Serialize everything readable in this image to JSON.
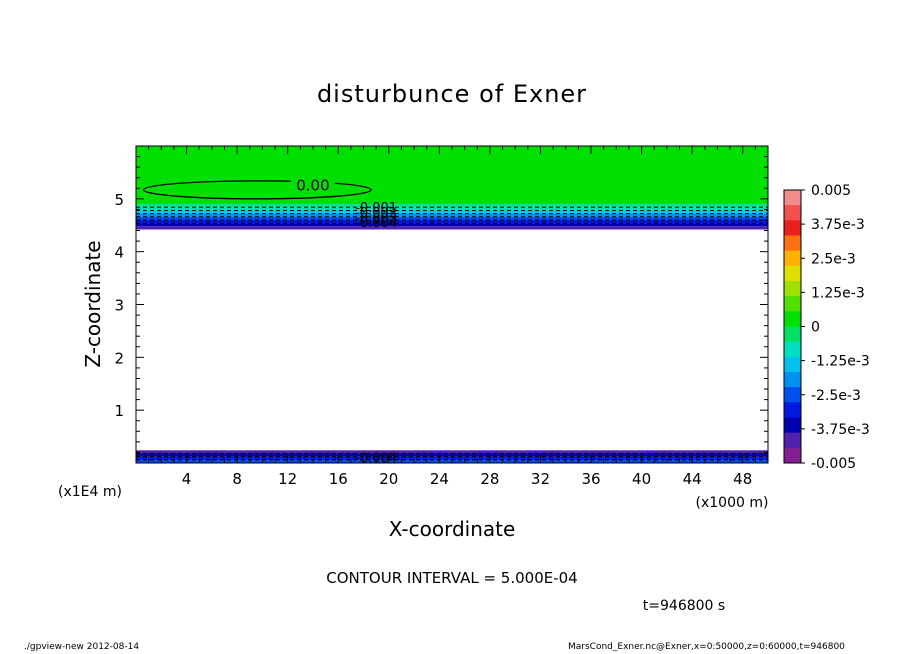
{
  "chart_data": {
    "type": "contour",
    "title": "disturbunce of Exner",
    "xlabel": "X-coordinate",
    "ylabel": "Z-coordinate",
    "x_unit": "(x1000 m)",
    "y_unit": "(x1E4 m)",
    "xlim": [
      0,
      50
    ],
    "ylim": [
      0,
      6
    ],
    "x_ticks": [
      4,
      8,
      12,
      16,
      20,
      24,
      28,
      32,
      36,
      40,
      44,
      48
    ],
    "y_ticks": [
      1,
      2,
      3,
      4,
      5
    ],
    "contour_interval_text": "CONTOUR INTERVAL = 5.000E-04",
    "time_text": "t=946800 s",
    "contour_labels": [
      {
        "text": "0.00",
        "x": 14.0,
        "y": 5.25
      },
      {
        "text": "-0.001",
        "x": 19.0,
        "y": 4.85
      },
      {
        "text": "-0.002",
        "x": 19.0,
        "y": 4.75
      },
      {
        "text": "-0.003",
        "x": 19.0,
        "y": 4.65
      },
      {
        "text": "-0.004",
        "x": 19.0,
        "y": 4.56
      },
      {
        "text": "-0.004",
        "x": 19.0,
        "y": 0.1
      }
    ],
    "colorbar": {
      "labels": [
        "0.005",
        "3.75e-3",
        "2.5e-3",
        "1.25e-3",
        "0",
        "-1.25e-3",
        "-2.5e-3",
        "-3.75e-3",
        "-0.005"
      ],
      "colors": [
        "#f28c8c",
        "#f25050",
        "#e82020",
        "#ff7010",
        "#ffb000",
        "#e0e000",
        "#a0e000",
        "#50e000",
        "#00e000",
        "#00e060",
        "#00e0c0",
        "#00c0f0",
        "#0090f0",
        "#0050f0",
        "#0018e0",
        "#0000b0",
        "#5020b0",
        "#802090"
      ]
    }
  },
  "footer": {
    "left": "./gpview-new   2012-08-14",
    "right": "MarsCond_Exner.nc@Exner,x=0:50000,z=0:60000,t=946800"
  }
}
